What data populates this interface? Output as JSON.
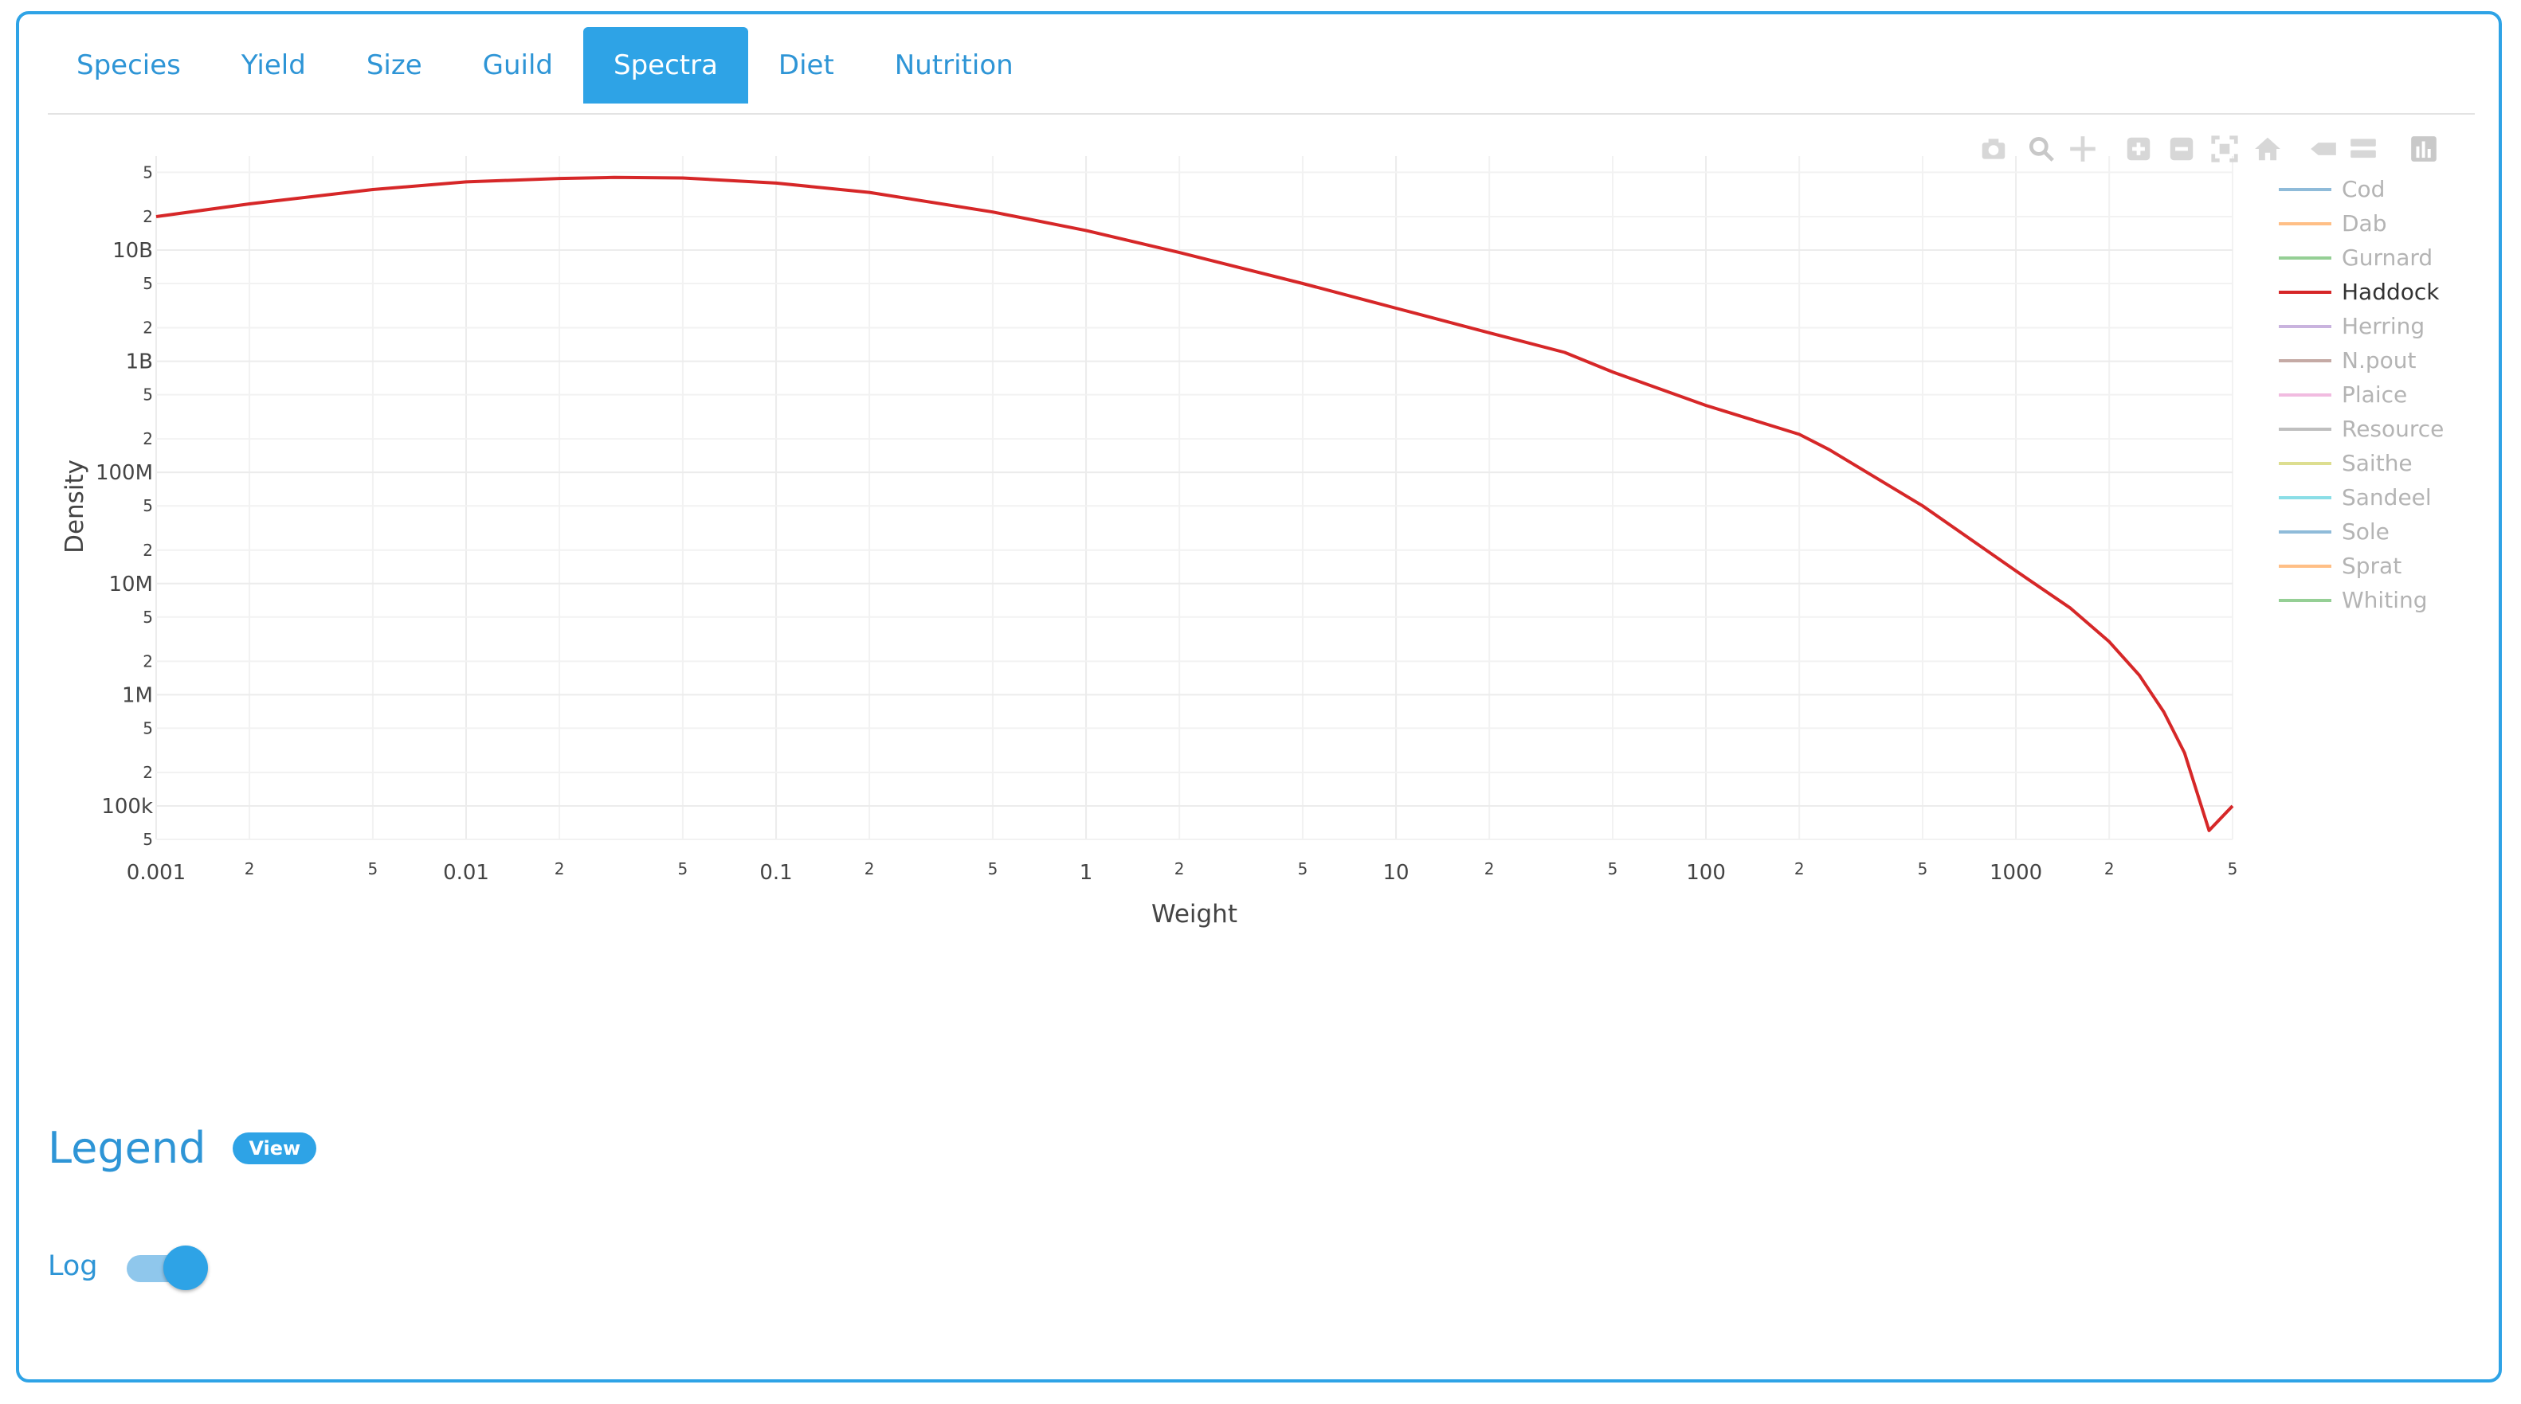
{
  "tabs": [
    {
      "label": "Species",
      "active": false
    },
    {
      "label": "Yield",
      "active": false
    },
    {
      "label": "Size",
      "active": false
    },
    {
      "label": "Guild",
      "active": false
    },
    {
      "label": "Spectra",
      "active": true
    },
    {
      "label": "Diet",
      "active": false
    },
    {
      "label": "Nutrition",
      "active": false
    }
  ],
  "toolbar_icons": [
    "camera-icon",
    "zoom-icon",
    "pan-icon",
    "zoom-in-icon",
    "zoom-out-icon",
    "autoscale-icon",
    "reset-axes-icon",
    "spike-lines-icon",
    "compare-data-icon",
    "plotly-logo-icon"
  ],
  "chart_data": {
    "type": "line",
    "xlabel": "Weight",
    "ylabel": "Density",
    "xscale": "log",
    "yscale": "log",
    "xlim": [
      0.001,
      5000
    ],
    "ylim": [
      50000,
      70000000000
    ],
    "x_tick_labels": [
      "0.001",
      "0.01",
      "0.1",
      "1",
      "10",
      "100",
      "1000"
    ],
    "x_minor_labels": [
      "2",
      "5"
    ],
    "y_tick_labels": [
      "100k",
      "1M",
      "10M",
      "100M",
      "1B",
      "10B"
    ],
    "y_minor_labels": [
      "2",
      "5"
    ],
    "grid": true,
    "legend_position": "right",
    "series": [
      {
        "name": "Cod",
        "color": "#1f77b4",
        "visible": false,
        "values": []
      },
      {
        "name": "Dab",
        "color": "#ff7f0e",
        "visible": false,
        "values": []
      },
      {
        "name": "Gurnard",
        "color": "#2ca02c",
        "visible": false,
        "values": []
      },
      {
        "name": "Haddock",
        "color": "#d62728",
        "visible": true,
        "x": [
          0.001,
          0.002,
          0.005,
          0.01,
          0.02,
          0.03,
          0.05,
          0.1,
          0.2,
          0.5,
          1,
          2,
          5,
          10,
          20,
          35,
          50,
          100,
          200,
          250,
          500,
          1000,
          1500,
          2000,
          2500,
          3000,
          3500,
          4200,
          5000
        ],
        "values": [
          20000000000,
          26000000000,
          35000000000,
          41000000000,
          44000000000,
          45000000000,
          44500000000,
          40000000000,
          33000000000,
          22000000000,
          15000000000,
          9500000000,
          5000000000,
          3000000000,
          1800000000,
          1200000000,
          800000000,
          400000000,
          220000000,
          160000000,
          50000000,
          13000000,
          6000000,
          3000000,
          1500000,
          700000,
          300000,
          60000,
          100000
        ]
      },
      {
        "name": "Herring",
        "color": "#9467bd",
        "visible": false,
        "values": []
      },
      {
        "name": "N.pout",
        "color": "#8c564b",
        "visible": false,
        "values": []
      },
      {
        "name": "Plaice",
        "color": "#e377c2",
        "visible": false,
        "values": []
      },
      {
        "name": "Resource",
        "color": "#7f7f7f",
        "visible": false,
        "values": []
      },
      {
        "name": "Saithe",
        "color": "#bcbd22",
        "visible": false,
        "values": []
      },
      {
        "name": "Sandeel",
        "color": "#17becf",
        "visible": false,
        "values": []
      },
      {
        "name": "Sole",
        "color": "#1f77b4",
        "visible": false,
        "values": []
      },
      {
        "name": "Sprat",
        "color": "#ff7f0e",
        "visible": false,
        "values": []
      },
      {
        "name": "Whiting",
        "color": "#2ca02c",
        "visible": false,
        "values": []
      }
    ]
  },
  "legend_section": {
    "title": "Legend",
    "view_label": "View"
  },
  "log_toggle": {
    "label": "Log",
    "checked": true
  },
  "colors": {
    "accent": "#2ea3e6",
    "tab_text": "#2e95d6"
  }
}
